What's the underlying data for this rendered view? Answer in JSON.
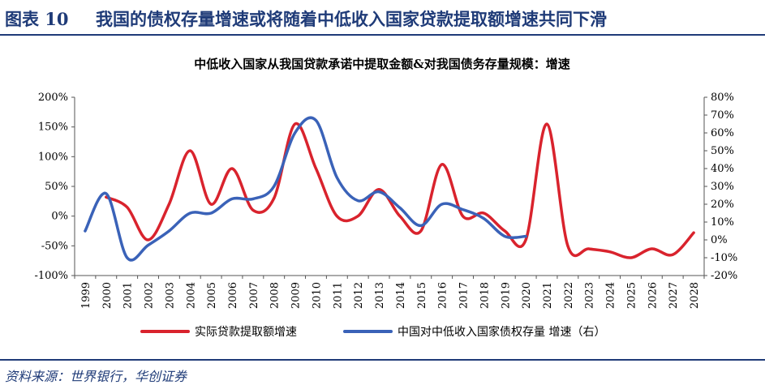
{
  "figure": {
    "label": "图表 10",
    "title": "我国的债权存量增速或将随着中低收入国家贷款提取额增速共同下滑"
  },
  "source": "资料来源：世界银行，华创证券",
  "colors": {
    "series1": "#d9232d",
    "series2": "#3a62b8",
    "brand": "#1f3b78"
  },
  "chart_data": {
    "type": "line",
    "title": "中低收入国家从我国贷款承诺中提取金额&对我国债务存量规模：增速",
    "x": [
      1999,
      2000,
      2001,
      2002,
      2003,
      2004,
      2005,
      2006,
      2007,
      2008,
      2009,
      2010,
      2011,
      2012,
      2013,
      2014,
      2015,
      2016,
      2017,
      2018,
      2019,
      2020,
      2021,
      2022,
      2023,
      2024,
      2025,
      2026,
      2027,
      2028
    ],
    "x_labels": [
      "1999",
      "2000",
      "2001",
      "2002",
      "2003",
      "2004",
      "2005",
      "2006",
      "2007",
      "2008",
      "2009",
      "2010",
      "2011",
      "2012",
      "2013",
      "2014",
      "2015",
      "2016",
      "2017",
      "2018",
      "2019",
      "2020",
      "2021",
      "2022",
      "2023",
      "2024",
      "2025",
      "2026",
      "2027",
      "2028"
    ],
    "y_left": {
      "min": -100,
      "max": 200,
      "step": 50,
      "ticks": [
        "200%",
        "150%",
        "100%",
        "50%",
        "0%",
        "-50%",
        "-100%"
      ]
    },
    "y_right": {
      "min": -20,
      "max": 80,
      "step": 10,
      "ticks": [
        "80%",
        "70%",
        "60%",
        "50%",
        "40%",
        "30%",
        "20%",
        "10%",
        "0%",
        "-10%",
        "-20%"
      ]
    },
    "series": [
      {
        "name": "实际贷款提取额增速",
        "axis": "left",
        "color": "#d9232d",
        "values": [
          null,
          32,
          15,
          -40,
          20,
          110,
          20,
          80,
          10,
          30,
          155,
          80,
          0,
          0,
          45,
          0,
          -25,
          87,
          0,
          5,
          -25,
          -40,
          155,
          -50,
          -55,
          -60,
          -70,
          -55,
          -65,
          -28
        ]
      },
      {
        "name": "中国对中低收入国家债权存量 增速（右）",
        "axis": "right",
        "color": "#3a62b8",
        "values": [
          5,
          26,
          -10,
          -3,
          5,
          15,
          15,
          23,
          23,
          30,
          60,
          67,
          35,
          22,
          27,
          18,
          8,
          20,
          17,
          12,
          2,
          2,
          null,
          null,
          null,
          null,
          null,
          null,
          null,
          null
        ]
      }
    ],
    "legend": {
      "position": "bottom",
      "items": [
        "实际贷款提取额增速",
        "中国对中低收入国家债权存量 增速（右）"
      ]
    }
  }
}
